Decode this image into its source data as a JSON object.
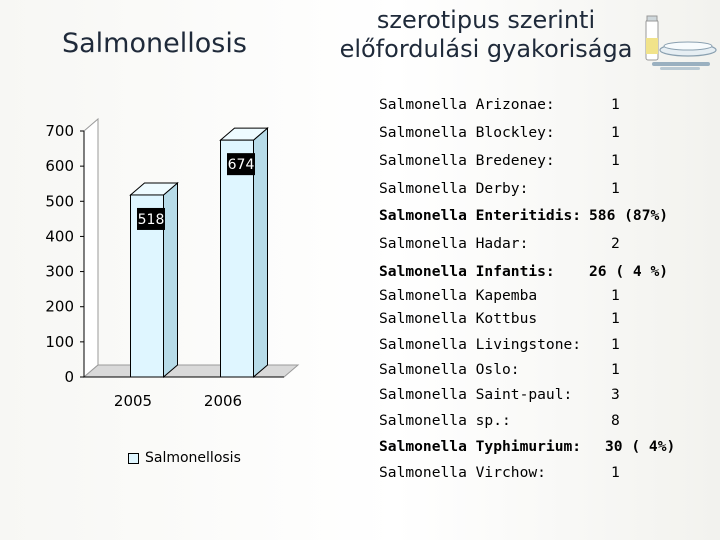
{
  "title": "Salmonellosis",
  "subtitle": [
    "szerotipus szerinti",
    "előfordulási gyakorisága"
  ],
  "chart_data": {
    "type": "bar",
    "categories": [
      "2005",
      "2006"
    ],
    "series": [
      {
        "name": "Salmonellosis",
        "values": [
          518,
          674
        ]
      }
    ],
    "data_labels": [
      "518",
      "674"
    ],
    "ylim": [
      0,
      700
    ],
    "yticks": [
      0,
      100,
      200,
      300,
      400,
      500,
      600,
      700
    ],
    "bar_color": "#dff6ff",
    "label_box_color": "#000000",
    "legend": "bottom",
    "grid": false,
    "style": "3d"
  },
  "serotypes": [
    {
      "name": "Salmonella Arizonae:",
      "count": "1",
      "bold": false
    },
    {
      "name": "Salmonella Blockley:",
      "count": "1",
      "bold": false
    },
    {
      "name": "Salmonella Bredeney:",
      "count": "1",
      "bold": false
    },
    {
      "name": "Salmonella Derby:",
      "count": "1",
      "bold": false
    },
    {
      "name": "Salmonella Enteritidis:",
      "count": "586 (87%)",
      "bold": true
    },
    {
      "name": "Salmonella Hadar:",
      "count": "2",
      "bold": false
    },
    {
      "name": "Salmonella Infantis:",
      "count": "26 ( 4 %)",
      "bold": true
    },
    {
      "name": "Salmonella Kapemba",
      "count": "1",
      "bold": false
    },
    {
      "name": "Salmonella Kottbus",
      "count": "1",
      "bold": false
    },
    {
      "name": "Salmonella Livingstone:",
      "count": "1",
      "bold": false
    },
    {
      "name": "Salmonella Oslo:",
      "count": "1",
      "bold": false
    },
    {
      "name": "Salmonella Saint-paul:",
      "count": "3",
      "bold": false
    },
    {
      "name": "Salmonella sp.:",
      "count": "8",
      "bold": false
    },
    {
      "name": "Salmonella Typhimurium:",
      "count": "30 ( 4%)",
      "bold": true
    },
    {
      "name": "Salmonella Virchow:",
      "count": "1",
      "bold": false
    }
  ]
}
